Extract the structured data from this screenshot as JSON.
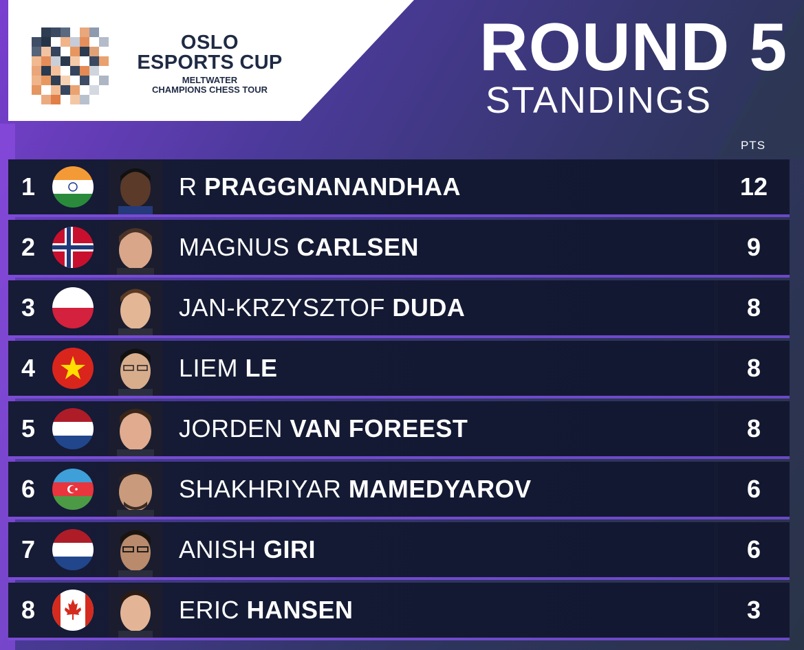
{
  "logo": {
    "line1": "OSLO",
    "line2": "ESPORTS CUP",
    "line3": "MELTWATER",
    "line4": "CHAMPIONS CHESS TOUR"
  },
  "header": {
    "title": "ROUND 5",
    "subtitle": "STANDINGS",
    "pts_label": "PTS"
  },
  "standings": [
    {
      "rank": "1",
      "first": "R",
      "last": "PRAGGNANANDHAA",
      "pts": "12",
      "flag": "india-flag-icon"
    },
    {
      "rank": "2",
      "first": "MAGNUS",
      "last": "CARLSEN",
      "pts": "9",
      "flag": "norway-flag-icon"
    },
    {
      "rank": "3",
      "first": "JAN-KRZYSZTOF",
      "last": "DUDA",
      "pts": "8",
      "flag": "poland-flag-icon"
    },
    {
      "rank": "4",
      "first": "LIEM",
      "last": "LE",
      "pts": "8",
      "flag": "vietnam-flag-icon"
    },
    {
      "rank": "5",
      "first": "JORDEN",
      "last": "VAN FOREEST",
      "pts": "8",
      "flag": "netherlands-flag-icon"
    },
    {
      "rank": "6",
      "first": "SHAKHRIYAR",
      "last": "MAMEDYAROV",
      "pts": "6",
      "flag": "azerbaijan-flag-icon"
    },
    {
      "rank": "7",
      "first": "ANISH",
      "last": "GIRI",
      "pts": "6",
      "flag": "netherlands-flag-icon"
    },
    {
      "rank": "8",
      "first": "ERIC",
      "last": "HANSEN",
      "pts": "3",
      "flag": "canada-flag-icon"
    }
  ],
  "colors": {
    "accent": "#7a3fd0",
    "row_bg": "#151a33",
    "text": "#ffffff"
  }
}
